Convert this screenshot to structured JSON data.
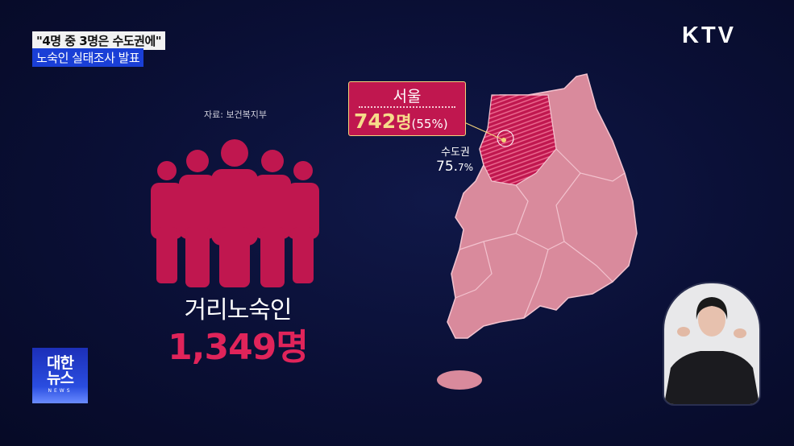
{
  "caption": {
    "headline": "\"4명 중 3명은 수도권에\"",
    "subline": "노숙인 실태조사 발표"
  },
  "broadcaster_logo": "KTV",
  "source": "자료: 보건복지부",
  "main_stat": {
    "label": "거리노숙인",
    "value": "1,349명",
    "icon": "people-group-icon"
  },
  "callout": {
    "region": "서울",
    "count": "742",
    "unit": "명",
    "percent": "(55%)"
  },
  "region_stat": {
    "label": "수도권",
    "value": "75.",
    "value_decimal": "7%"
  },
  "program_logo": {
    "korean": "대한\n뉴스",
    "english": "NEWS"
  },
  "colors": {
    "accent": "#c0174f",
    "map": "#d98a9c",
    "highlight": "#e0245a",
    "background": "#0a0f35"
  }
}
